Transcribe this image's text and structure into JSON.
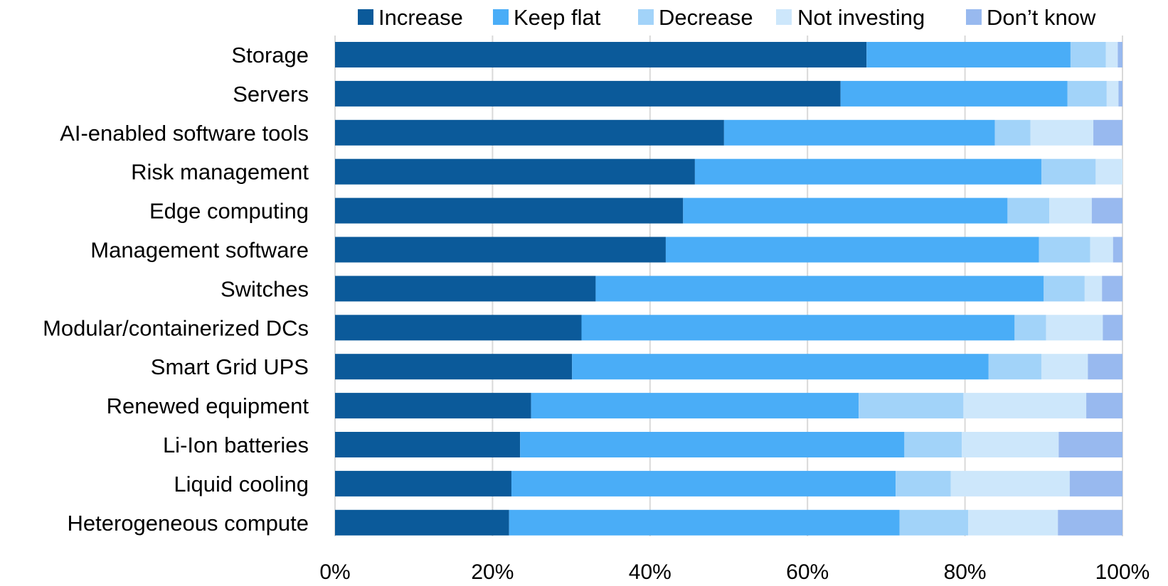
{
  "chart_data": {
    "type": "bar",
    "orientation": "horizontal",
    "stacked": true,
    "title": "",
    "xlabel": "",
    "ylabel": "",
    "xlim": [
      0,
      100
    ],
    "x_ticks": [
      "0%",
      "20%",
      "40%",
      "60%",
      "80%",
      "100%"
    ],
    "grid": "vertical",
    "legend_position": "top",
    "categories": [
      "Storage",
      "Servers",
      "AI-enabled software tools",
      "Risk management",
      "Edge computing",
      "Management software",
      "Switches",
      "Modular/containerized DCs",
      "Smart Grid UPS",
      "Renewed equipment",
      "Li-Ion batteries",
      "Liquid cooling",
      "Heterogeneous compute"
    ],
    "series": [
      {
        "name": "Increase",
        "color": "#0b5a9a",
        "values": [
          67.5,
          64.2,
          49.4,
          45.7,
          44.2,
          42.0,
          33.1,
          31.3,
          30.1,
          24.9,
          23.5,
          22.4,
          22.1
        ]
      },
      {
        "name": "Keep flat",
        "color": "#4aadf7",
        "values": [
          25.9,
          28.8,
          34.4,
          44.0,
          41.2,
          47.4,
          56.9,
          55.0,
          52.9,
          41.6,
          48.8,
          48.8,
          49.6
        ]
      },
      {
        "name": "Decrease",
        "color": "#a2d3f9",
        "values": [
          4.5,
          5.0,
          4.5,
          6.9,
          5.3,
          6.5,
          5.2,
          4.0,
          6.7,
          13.3,
          7.3,
          7.0,
          8.7
        ]
      },
      {
        "name": "Not investing",
        "color": "#cde7fb",
        "values": [
          1.5,
          1.5,
          8.0,
          3.4,
          5.4,
          2.9,
          2.2,
          7.2,
          5.9,
          15.6,
          12.3,
          15.1,
          11.4
        ]
      },
      {
        "name": "Don’t know",
        "color": "#98b9ef",
        "values": [
          0.6,
          0.5,
          3.7,
          0.0,
          3.9,
          1.2,
          2.6,
          2.5,
          4.4,
          4.6,
          8.1,
          6.7,
          8.2
        ]
      }
    ]
  }
}
